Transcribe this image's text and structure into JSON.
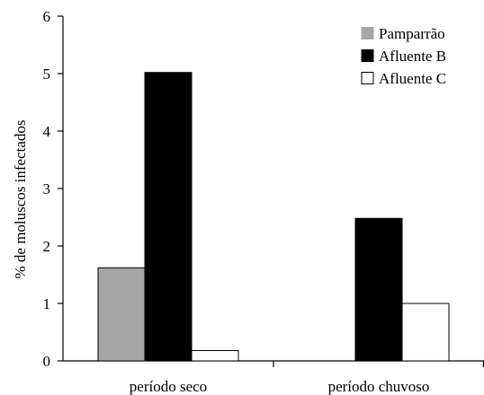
{
  "chart_data": {
    "type": "bar",
    "categories": [
      "período seco",
      "período chuvoso"
    ],
    "series": [
      {
        "name": "Pamparrão",
        "values": [
          1.62,
          0
        ],
        "color": "#a6a6a6"
      },
      {
        "name": "Afluente B",
        "values": [
          5.02,
          2.48
        ],
        "color": "#000000"
      },
      {
        "name": "Afluente C",
        "values": [
          0.18,
          1.0
        ],
        "color": "#ffffff"
      }
    ],
    "title": "",
    "xlabel": "",
    "ylabel": "% de moluscos infectados",
    "ylim": [
      0,
      6
    ],
    "yticks": [
      0,
      1,
      2,
      3,
      4,
      5,
      6
    ],
    "grid": false,
    "legend": "top-right"
  }
}
